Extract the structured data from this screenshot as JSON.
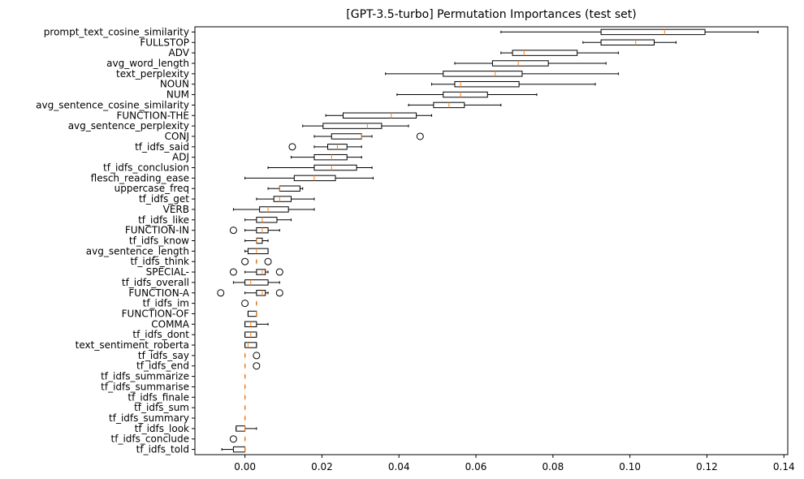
{
  "chart_data": {
    "type": "box",
    "orientation": "horizontal",
    "title": "[GPT-3.5-turbo] Permutation Importances (test set)",
    "xlabel": "",
    "ylabel": "",
    "xlim": [
      -0.013,
      0.141
    ],
    "xticks": [
      0.0,
      0.02,
      0.04,
      0.06,
      0.08,
      0.1,
      0.12,
      0.14
    ],
    "xtick_labels": [
      "0.00",
      "0.02",
      "0.04",
      "0.06",
      "0.08",
      "0.10",
      "0.12",
      "0.14"
    ],
    "box_color": "#000000",
    "median_color": "#ff7f0e",
    "grid": false,
    "features": [
      {
        "name": "prompt_text_cosine_similarity",
        "whisker_low": 0.0665,
        "q1": 0.0925,
        "median": 0.109,
        "q3": 0.1195,
        "whisker_high": 0.1333,
        "outliers": []
      },
      {
        "name": "FULLSTOP",
        "whisker_low": 0.0878,
        "q1": 0.0925,
        "median": 0.1015,
        "q3": 0.1063,
        "whisker_high": 0.112,
        "outliers": []
      },
      {
        "name": "ADV",
        "whisker_low": 0.0665,
        "q1": 0.0695,
        "median": 0.0725,
        "q3": 0.0863,
        "whisker_high": 0.097,
        "outliers": []
      },
      {
        "name": "avg_word_length",
        "whisker_low": 0.0545,
        "q1": 0.0643,
        "median": 0.071,
        "q3": 0.0788,
        "whisker_high": 0.0938,
        "outliers": []
      },
      {
        "name": "text_perplexity",
        "whisker_low": 0.0365,
        "q1": 0.0515,
        "median": 0.065,
        "q3": 0.072,
        "whisker_high": 0.097,
        "outliers": []
      },
      {
        "name": "NOUN",
        "whisker_low": 0.0485,
        "q1": 0.0545,
        "median": 0.056,
        "q3": 0.0712,
        "whisker_high": 0.091,
        "outliers": []
      },
      {
        "name": "NUM",
        "whisker_low": 0.0395,
        "q1": 0.0515,
        "median": 0.056,
        "q3": 0.063,
        "whisker_high": 0.0758,
        "outliers": []
      },
      {
        "name": "avg_sentence_cosine_similarity",
        "whisker_low": 0.0425,
        "q1": 0.049,
        "median": 0.053,
        "q3": 0.057,
        "whisker_high": 0.0665,
        "outliers": []
      },
      {
        "name": "FUNCTION-THE",
        "whisker_low": 0.021,
        "q1": 0.0255,
        "median": 0.038,
        "q3": 0.0445,
        "whisker_high": 0.0485,
        "outliers": []
      },
      {
        "name": "avg_sentence_perplexity",
        "whisker_low": 0.015,
        "q1": 0.0203,
        "median": 0.0318,
        "q3": 0.0355,
        "whisker_high": 0.0425,
        "outliers": []
      },
      {
        "name": "CONJ",
        "whisker_low": 0.018,
        "q1": 0.0225,
        "median": 0.0303,
        "q3": 0.0303,
        "whisker_high": 0.033,
        "outliers": [
          0.0455
        ]
      },
      {
        "name": "tf_idfs_said",
        "whisker_low": 0.018,
        "q1": 0.0215,
        "median": 0.024,
        "q3": 0.0265,
        "whisker_high": 0.0303,
        "outliers": [
          0.0123
        ]
      },
      {
        "name": "ADJ",
        "whisker_low": 0.012,
        "q1": 0.018,
        "median": 0.0225,
        "q3": 0.0265,
        "whisker_high": 0.0303,
        "outliers": []
      },
      {
        "name": "tf_idfs_conclusion",
        "whisker_low": 0.006,
        "q1": 0.018,
        "median": 0.0225,
        "q3": 0.029,
        "whisker_high": 0.033,
        "outliers": []
      },
      {
        "name": "flesch_reading_ease",
        "whisker_low": 0.0,
        "q1": 0.0128,
        "median": 0.018,
        "q3": 0.0235,
        "whisker_high": 0.0333,
        "outliers": []
      },
      {
        "name": "uppercase_freq",
        "whisker_low": 0.006,
        "q1": 0.009,
        "median": 0.009,
        "q3": 0.0143,
        "whisker_high": 0.015,
        "outliers": []
      },
      {
        "name": "tf_idfs_get",
        "whisker_low": 0.003,
        "q1": 0.0075,
        "median": 0.009,
        "q3": 0.012,
        "whisker_high": 0.018,
        "outliers": []
      },
      {
        "name": "VERB",
        "whisker_low": -0.003,
        "q1": 0.0038,
        "median": 0.006,
        "q3": 0.0113,
        "whisker_high": 0.018,
        "outliers": []
      },
      {
        "name": "tf_idfs_like",
        "whisker_low": 0.0,
        "q1": 0.003,
        "median": 0.0045,
        "q3": 0.0083,
        "whisker_high": 0.012,
        "outliers": []
      },
      {
        "name": "FUNCTION-IN",
        "whisker_low": 0.0,
        "q1": 0.003,
        "median": 0.0045,
        "q3": 0.006,
        "whisker_high": 0.009,
        "outliers": [
          -0.003
        ]
      },
      {
        "name": "tf_idfs_know",
        "whisker_low": 0.0,
        "q1": 0.003,
        "median": 0.003,
        "q3": 0.0045,
        "whisker_high": 0.006,
        "outliers": []
      },
      {
        "name": "avg_sentence_length",
        "whisker_low": 0.0,
        "q1": 0.0008,
        "median": 0.003,
        "q3": 0.006,
        "whisker_high": 0.006,
        "outliers": []
      },
      {
        "name": "tf_idfs_think",
        "whisker_low": 0.003,
        "q1": 0.003,
        "median": 0.003,
        "q3": 0.003,
        "whisker_high": 0.003,
        "outliers": [
          0.0,
          0.006
        ]
      },
      {
        "name": "SPECIAL-",
        "whisker_low": 0.0,
        "q1": 0.003,
        "median": 0.0045,
        "q3": 0.0053,
        "whisker_high": 0.006,
        "outliers": [
          -0.003,
          0.009
        ]
      },
      {
        "name": "tf_idfs_overall",
        "whisker_low": -0.003,
        "q1": 0.0,
        "median": 0.0015,
        "q3": 0.006,
        "whisker_high": 0.009,
        "outliers": []
      },
      {
        "name": "FUNCTION-A",
        "whisker_low": 0.0,
        "q1": 0.003,
        "median": 0.0045,
        "q3": 0.0053,
        "whisker_high": 0.006,
        "outliers": [
          -0.0063,
          0.009
        ]
      },
      {
        "name": "tf_idfs_im",
        "whisker_low": 0.003,
        "q1": 0.003,
        "median": 0.003,
        "q3": 0.003,
        "whisker_high": 0.003,
        "outliers": [
          0.0
        ]
      },
      {
        "name": "FUNCTION-OF",
        "whisker_low": 0.0008,
        "q1": 0.0008,
        "median": 0.003,
        "q3": 0.003,
        "whisker_high": 0.003,
        "outliers": []
      },
      {
        "name": "COMMA",
        "whisker_low": 0.0,
        "q1": 0.0,
        "median": 0.0015,
        "q3": 0.003,
        "whisker_high": 0.006,
        "outliers": []
      },
      {
        "name": "tf_idfs_dont",
        "whisker_low": 0.0,
        "q1": 0.0,
        "median": 0.0015,
        "q3": 0.003,
        "whisker_high": 0.003,
        "outliers": []
      },
      {
        "name": "text_sentiment_roberta",
        "whisker_low": 0.0,
        "q1": 0.0,
        "median": 0.0008,
        "q3": 0.003,
        "whisker_high": 0.003,
        "outliers": []
      },
      {
        "name": "tf_idfs_say",
        "whisker_low": 0.0,
        "q1": 0.0,
        "median": 0.0,
        "q3": 0.0,
        "whisker_high": 0.0,
        "outliers": [
          0.003
        ]
      },
      {
        "name": "tf_idfs_end",
        "whisker_low": 0.0,
        "q1": 0.0,
        "median": 0.0,
        "q3": 0.0,
        "whisker_high": 0.0,
        "outliers": [
          0.003
        ]
      },
      {
        "name": "tf_idfs_summarize",
        "whisker_low": 0.0,
        "q1": 0.0,
        "median": 0.0,
        "q3": 0.0,
        "whisker_high": 0.0,
        "outliers": []
      },
      {
        "name": "tf_idfs_summarise",
        "whisker_low": 0.0,
        "q1": 0.0,
        "median": 0.0,
        "q3": 0.0,
        "whisker_high": 0.0,
        "outliers": []
      },
      {
        "name": "tf_idfs_finale",
        "whisker_low": 0.0,
        "q1": 0.0,
        "median": 0.0,
        "q3": 0.0,
        "whisker_high": 0.0,
        "outliers": []
      },
      {
        "name": "tf_idfs_sum",
        "whisker_low": 0.0,
        "q1": 0.0,
        "median": 0.0,
        "q3": 0.0,
        "whisker_high": 0.0,
        "outliers": []
      },
      {
        "name": "tf_idfs_summary",
        "whisker_low": 0.0,
        "q1": 0.0,
        "median": 0.0,
        "q3": 0.0,
        "whisker_high": 0.0,
        "outliers": []
      },
      {
        "name": "tf_idfs_look",
        "whisker_low": -0.0023,
        "q1": -0.0023,
        "median": 0.0,
        "q3": 0.0,
        "whisker_high": 0.003,
        "outliers": []
      },
      {
        "name": "tf_idfs_conclude",
        "whisker_low": 0.0,
        "q1": 0.0,
        "median": 0.0,
        "q3": 0.0,
        "whisker_high": 0.0,
        "outliers": [
          -0.003
        ]
      },
      {
        "name": "tf_idfs_told",
        "whisker_low": -0.006,
        "q1": -0.003,
        "median": 0.0,
        "q3": 0.0,
        "whisker_high": 0.0,
        "outliers": []
      }
    ]
  }
}
